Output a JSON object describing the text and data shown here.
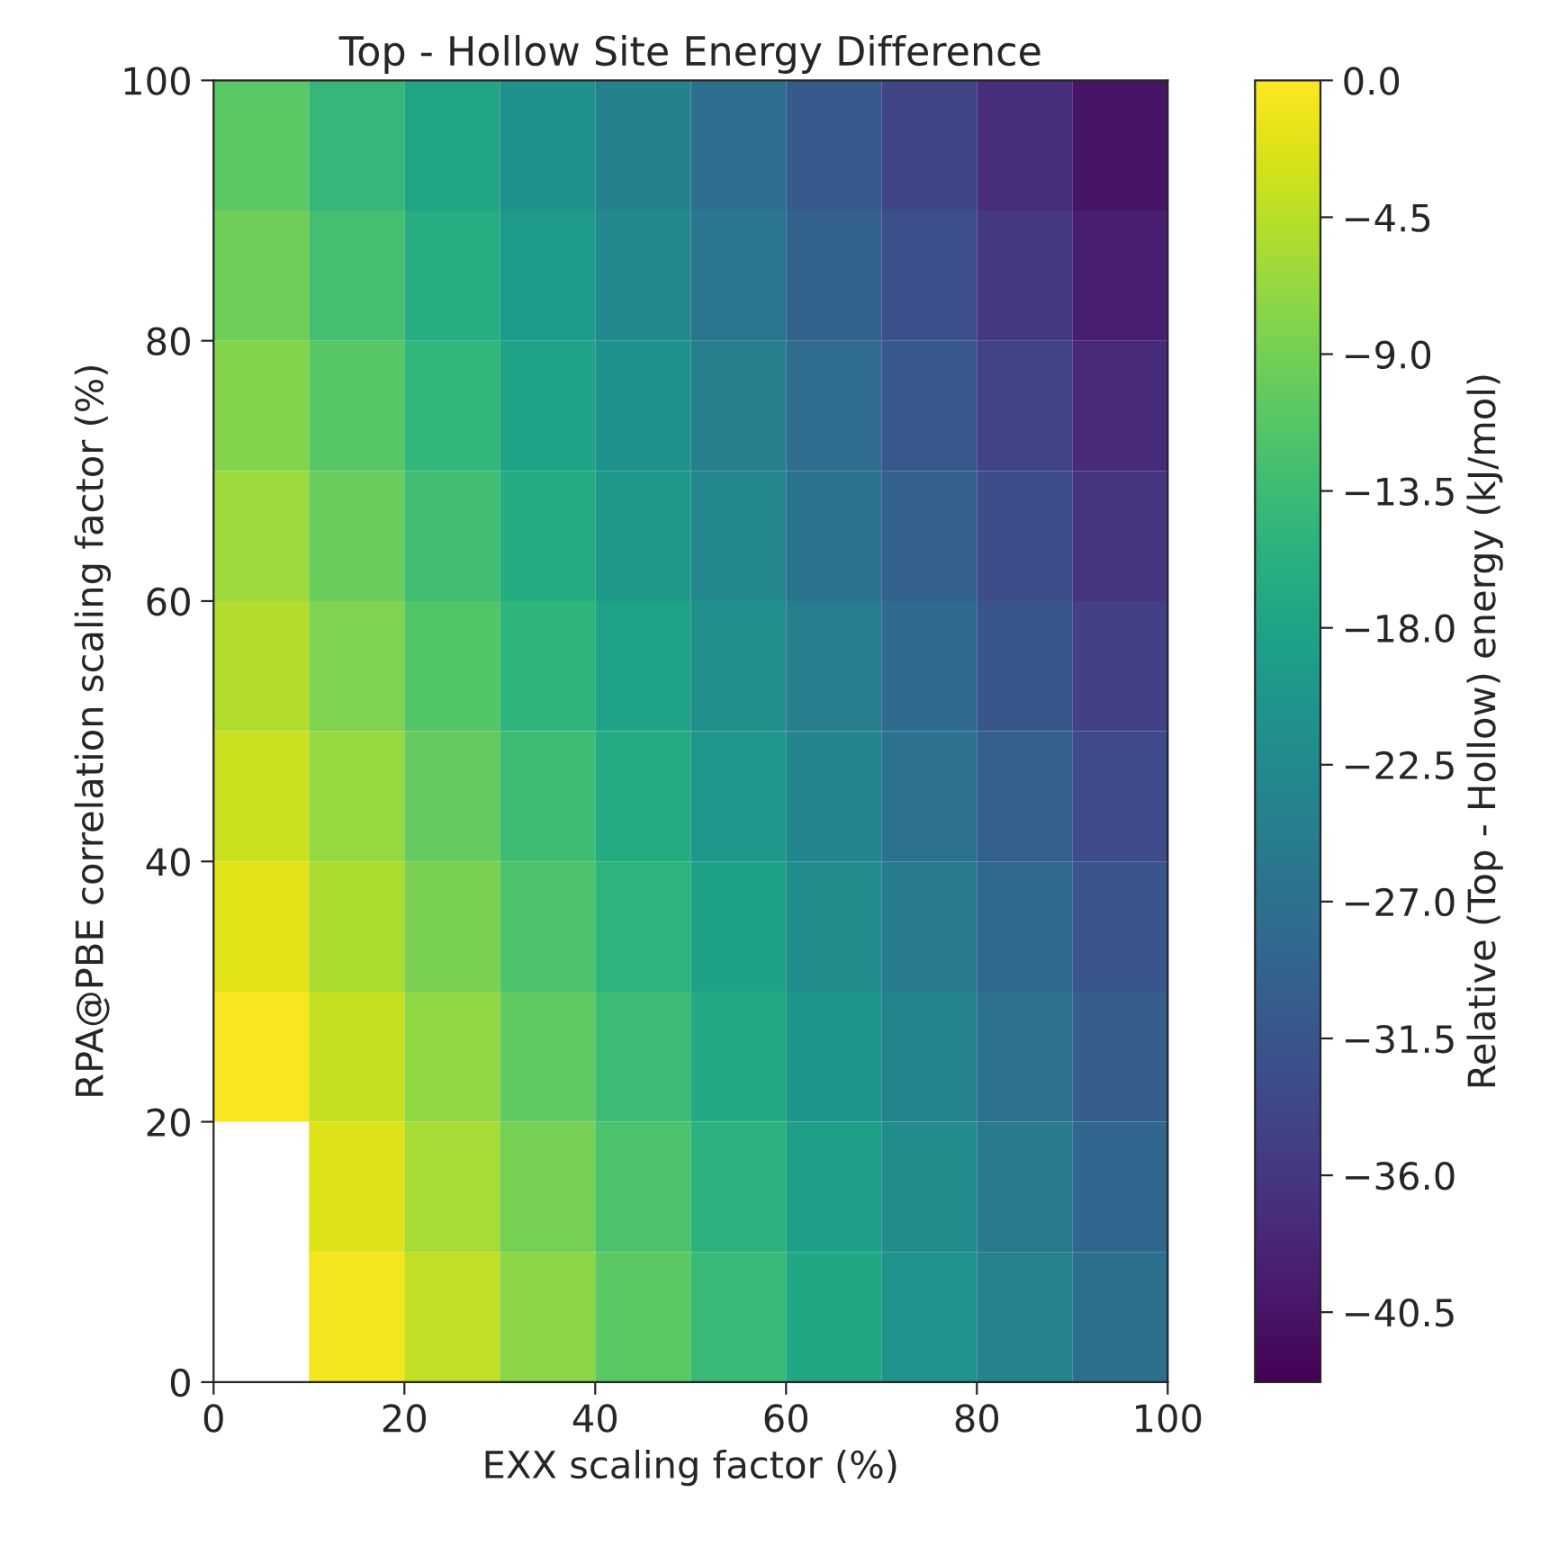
{
  "chart_data": {
    "type": "heatmap",
    "title": "Top - Hollow Site Energy Difference",
    "xlabel": "EXX scaling factor (%)",
    "ylabel": "RPA@PBE correlation scaling factor (%)",
    "clabel": "Relative (Top - Hollow) energy (kJ/mol)",
    "xlim": [
      0,
      100
    ],
    "ylim": [
      0,
      100
    ],
    "xticks": [
      0,
      20,
      40,
      60,
      80,
      100
    ],
    "yticks": [
      0,
      20,
      40,
      60,
      80,
      100
    ],
    "clim": [
      -42.8,
      0
    ],
    "cticks": [
      {
        "value": 0,
        "label": "0.0"
      },
      {
        "value": -4.5,
        "label": "−4.5"
      },
      {
        "value": -9.0,
        "label": "−9.0"
      },
      {
        "value": -13.5,
        "label": "−13.5"
      },
      {
        "value": -18.0,
        "label": "−18.0"
      },
      {
        "value": -22.5,
        "label": "−22.5"
      },
      {
        "value": -27.0,
        "label": "−27.0"
      },
      {
        "value": -31.5,
        "label": "−31.5"
      },
      {
        "value": -36.0,
        "label": "−36.0"
      },
      {
        "value": -40.5,
        "label": "−40.5"
      }
    ],
    "cells": [
      [
        -11.0,
        -14.3,
        -17.6,
        -20.9,
        -24.2,
        -27.5,
        -30.8,
        -34.1,
        -37.4,
        -40.7
      ],
      [
        -9.5,
        -12.8,
        -16.1,
        -19.4,
        -22.7,
        -26.0,
        -29.3,
        -32.6,
        -35.9,
        -39.2
      ],
      [
        -8.0,
        -11.3,
        -14.6,
        -17.9,
        -21.2,
        -24.5,
        -27.8,
        -31.1,
        -34.4,
        -37.7
      ],
      [
        -6.5,
        -9.8,
        -13.1,
        -16.4,
        -19.7,
        -23.0,
        -26.3,
        -29.6,
        -32.9,
        -36.2
      ],
      [
        -5.0,
        -8.3,
        -11.6,
        -14.9,
        -18.2,
        -21.5,
        -24.8,
        -28.1,
        -31.4,
        -34.7
      ],
      [
        -3.5,
        -6.8,
        -10.1,
        -13.4,
        -16.7,
        -20.0,
        -23.3,
        -26.6,
        -29.9,
        -33.2
      ],
      [
        -2.0,
        -5.3,
        -8.6,
        -11.9,
        -15.2,
        -18.5,
        -21.8,
        -25.1,
        -28.4,
        -31.7
      ],
      [
        -0.5,
        -3.8,
        -7.1,
        -10.4,
        -13.7,
        -17.0,
        -20.3,
        -23.6,
        -26.9,
        -30.2
      ],
      [
        null,
        -2.3,
        -5.6,
        -8.9,
        -12.2,
        -15.5,
        -18.8,
        -22.1,
        -25.4,
        -28.7
      ],
      [
        null,
        -0.8,
        -4.1,
        -7.4,
        -10.7,
        -14.0,
        -17.3,
        -20.6,
        -23.9,
        -27.2
      ]
    ],
    "grid": false
  }
}
